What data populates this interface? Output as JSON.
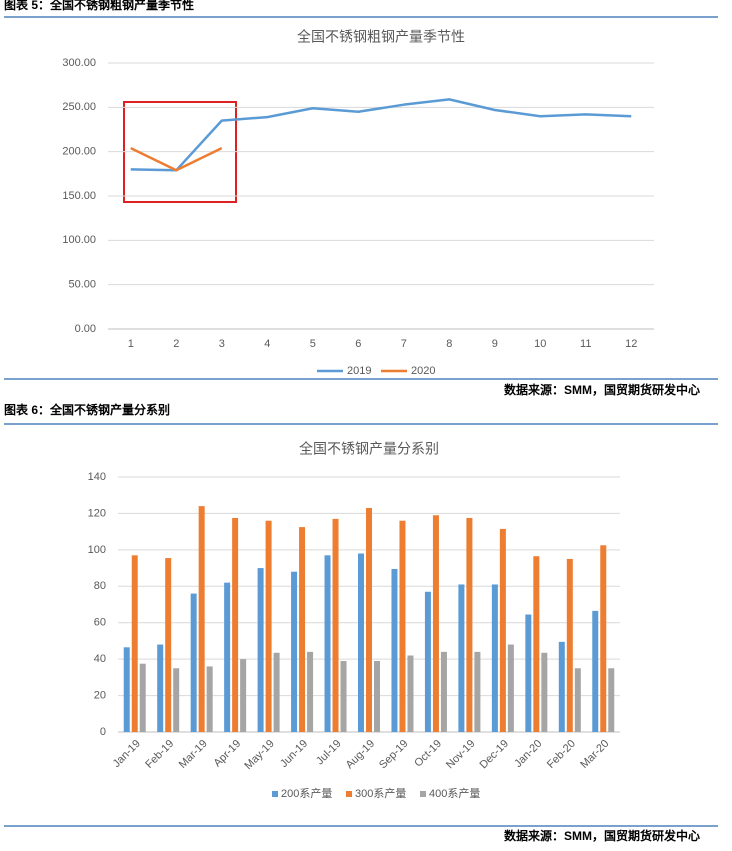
{
  "captions": [
    "图表 5：全国不锈钢粗钢产量季节性",
    "图表 6：全国不锈钢产量分系别"
  ],
  "sources": [
    "数据来源：SMM，国贸期货研发中心",
    "数据来源：SMM，国贸期货研发中心"
  ],
  "chart_data": [
    {
      "type": "line",
      "title": "全国不锈钢粗钢产量季节性",
      "categories": [
        "1",
        "2",
        "3",
        "4",
        "5",
        "6",
        "7",
        "8",
        "9",
        "10",
        "11",
        "12"
      ],
      "series": [
        {
          "name": "2019",
          "color": "#5b9bd5",
          "values": [
            180,
            179,
            235,
            239,
            249,
            245,
            253,
            259,
            247,
            240,
            242,
            240
          ]
        },
        {
          "name": "2020",
          "color": "#ed7d31",
          "values": [
            204,
            179,
            204,
            null,
            null,
            null,
            null,
            null,
            null,
            null,
            null,
            null
          ]
        }
      ],
      "ylim": [
        0,
        300
      ],
      "yticks": [
        {
          "value": 0,
          "label": "0.00"
        },
        {
          "value": 50,
          "label": "50.00"
        },
        {
          "value": 100,
          "label": "100.00"
        },
        {
          "value": 150,
          "label": "150.00"
        },
        {
          "value": 200,
          "label": "200.00"
        },
        {
          "value": 250,
          "label": "250.00"
        },
        {
          "value": 300,
          "label": "300.00"
        }
      ],
      "grid": true,
      "legend": "bottom"
    },
    {
      "type": "bar",
      "title": "全国不锈钢产量分系别",
      "categories": [
        "Jan-19",
        "Feb-19",
        "Mar-19",
        "Apr-19",
        "May-19",
        "Jun-19",
        "Jul-19",
        "Aug-19",
        "Sep-19",
        "Oct-19",
        "Nov-19",
        "Dec-19",
        "Jan-20",
        "Feb-20",
        "Mar-20"
      ],
      "series": [
        {
          "name": "200系产量",
          "color": "#5b9bd5",
          "values": [
            46.5,
            48,
            76,
            82,
            90,
            88,
            97,
            98,
            89.5,
            77,
            81,
            81,
            64.5,
            49.5,
            66.5
          ]
        },
        {
          "name": "300系产量",
          "color": "#ed7d31",
          "values": [
            97,
            95.5,
            124,
            117.5,
            116,
            112.5,
            117,
            123,
            116,
            119,
            117.5,
            111.5,
            96.5,
            95,
            102.5
          ]
        },
        {
          "name": "400系产量",
          "color": "#a5a5a5",
          "values": [
            37.5,
            35,
            36,
            40,
            43.5,
            44,
            39,
            39,
            42,
            44,
            44,
            48,
            43.5,
            35,
            35
          ]
        }
      ],
      "ylim": [
        0,
        140
      ],
      "yticks": [
        0,
        20,
        40,
        60,
        80,
        100,
        120,
        140
      ],
      "grid": true,
      "legend": "bottom"
    }
  ]
}
